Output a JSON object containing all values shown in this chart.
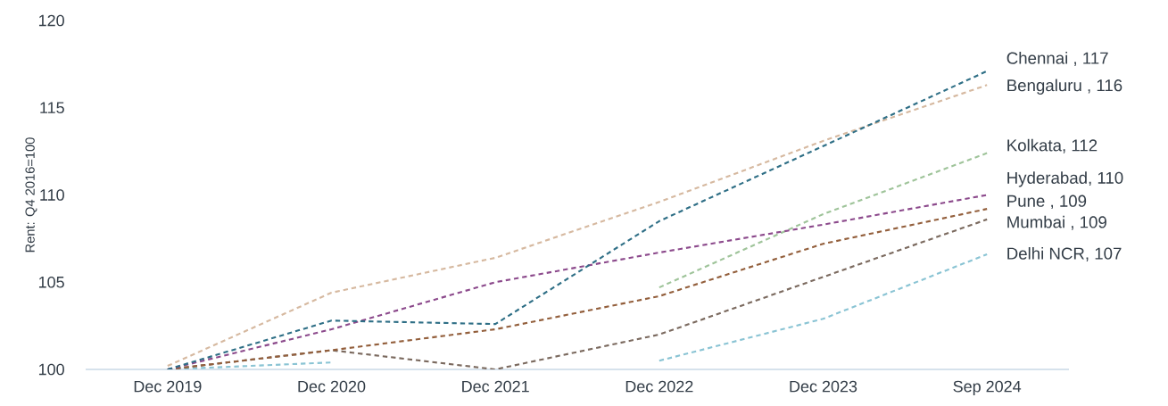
{
  "chart_data": {
    "type": "line",
    "ylabel": "Rent: Q4 2016=100",
    "categories": [
      "Dec 2019",
      "Dec 2020",
      "Dec 2021",
      "Dec 2022",
      "Dec 2023",
      "Sep 2024"
    ],
    "ylim": [
      100,
      120
    ],
    "yticks": [
      100,
      105,
      110,
      115,
      120
    ],
    "grid": false,
    "marker": "none",
    "line_style": "dashed",
    "series": [
      {
        "color": "#d6b9a0",
        "values": [
          100.2,
          104.4,
          106.4,
          109.6,
          113.1,
          116.3
        ]
      },
      {
        "color": "#9fc49a",
        "values": [
          null,
          null,
          null,
          104.7,
          108.9,
          112.4
        ]
      },
      {
        "color": "#8ac4d4",
        "values": [
          100,
          100.4,
          null,
          100.5,
          102.9,
          106.6
        ]
      },
      {
        "color": "#7b6a5f",
        "values": [
          100,
          101.1,
          100,
          102.0,
          105.3,
          108.6
        ]
      },
      {
        "color": "#935f3c",
        "values": [
          100,
          101.1,
          102.3,
          104.2,
          107.2,
          109.2
        ]
      },
      {
        "color": "#8c4a8c",
        "values": [
          100,
          102.3,
          105.0,
          106.7,
          108.3,
          110.0
        ]
      },
      {
        "color": "#2f6f86",
        "values": [
          100,
          102.8,
          102.6,
          108.5,
          112.8,
          117.1
        ]
      }
    ],
    "annotations": [
      "Chennai , 117",
      "Bengaluru , 116",
      "Kolkata, 112",
      "Hyderabad, 110",
      "Pune , 109",
      "Mumbai , 109",
      "Delhi NCR, 107"
    ]
  }
}
